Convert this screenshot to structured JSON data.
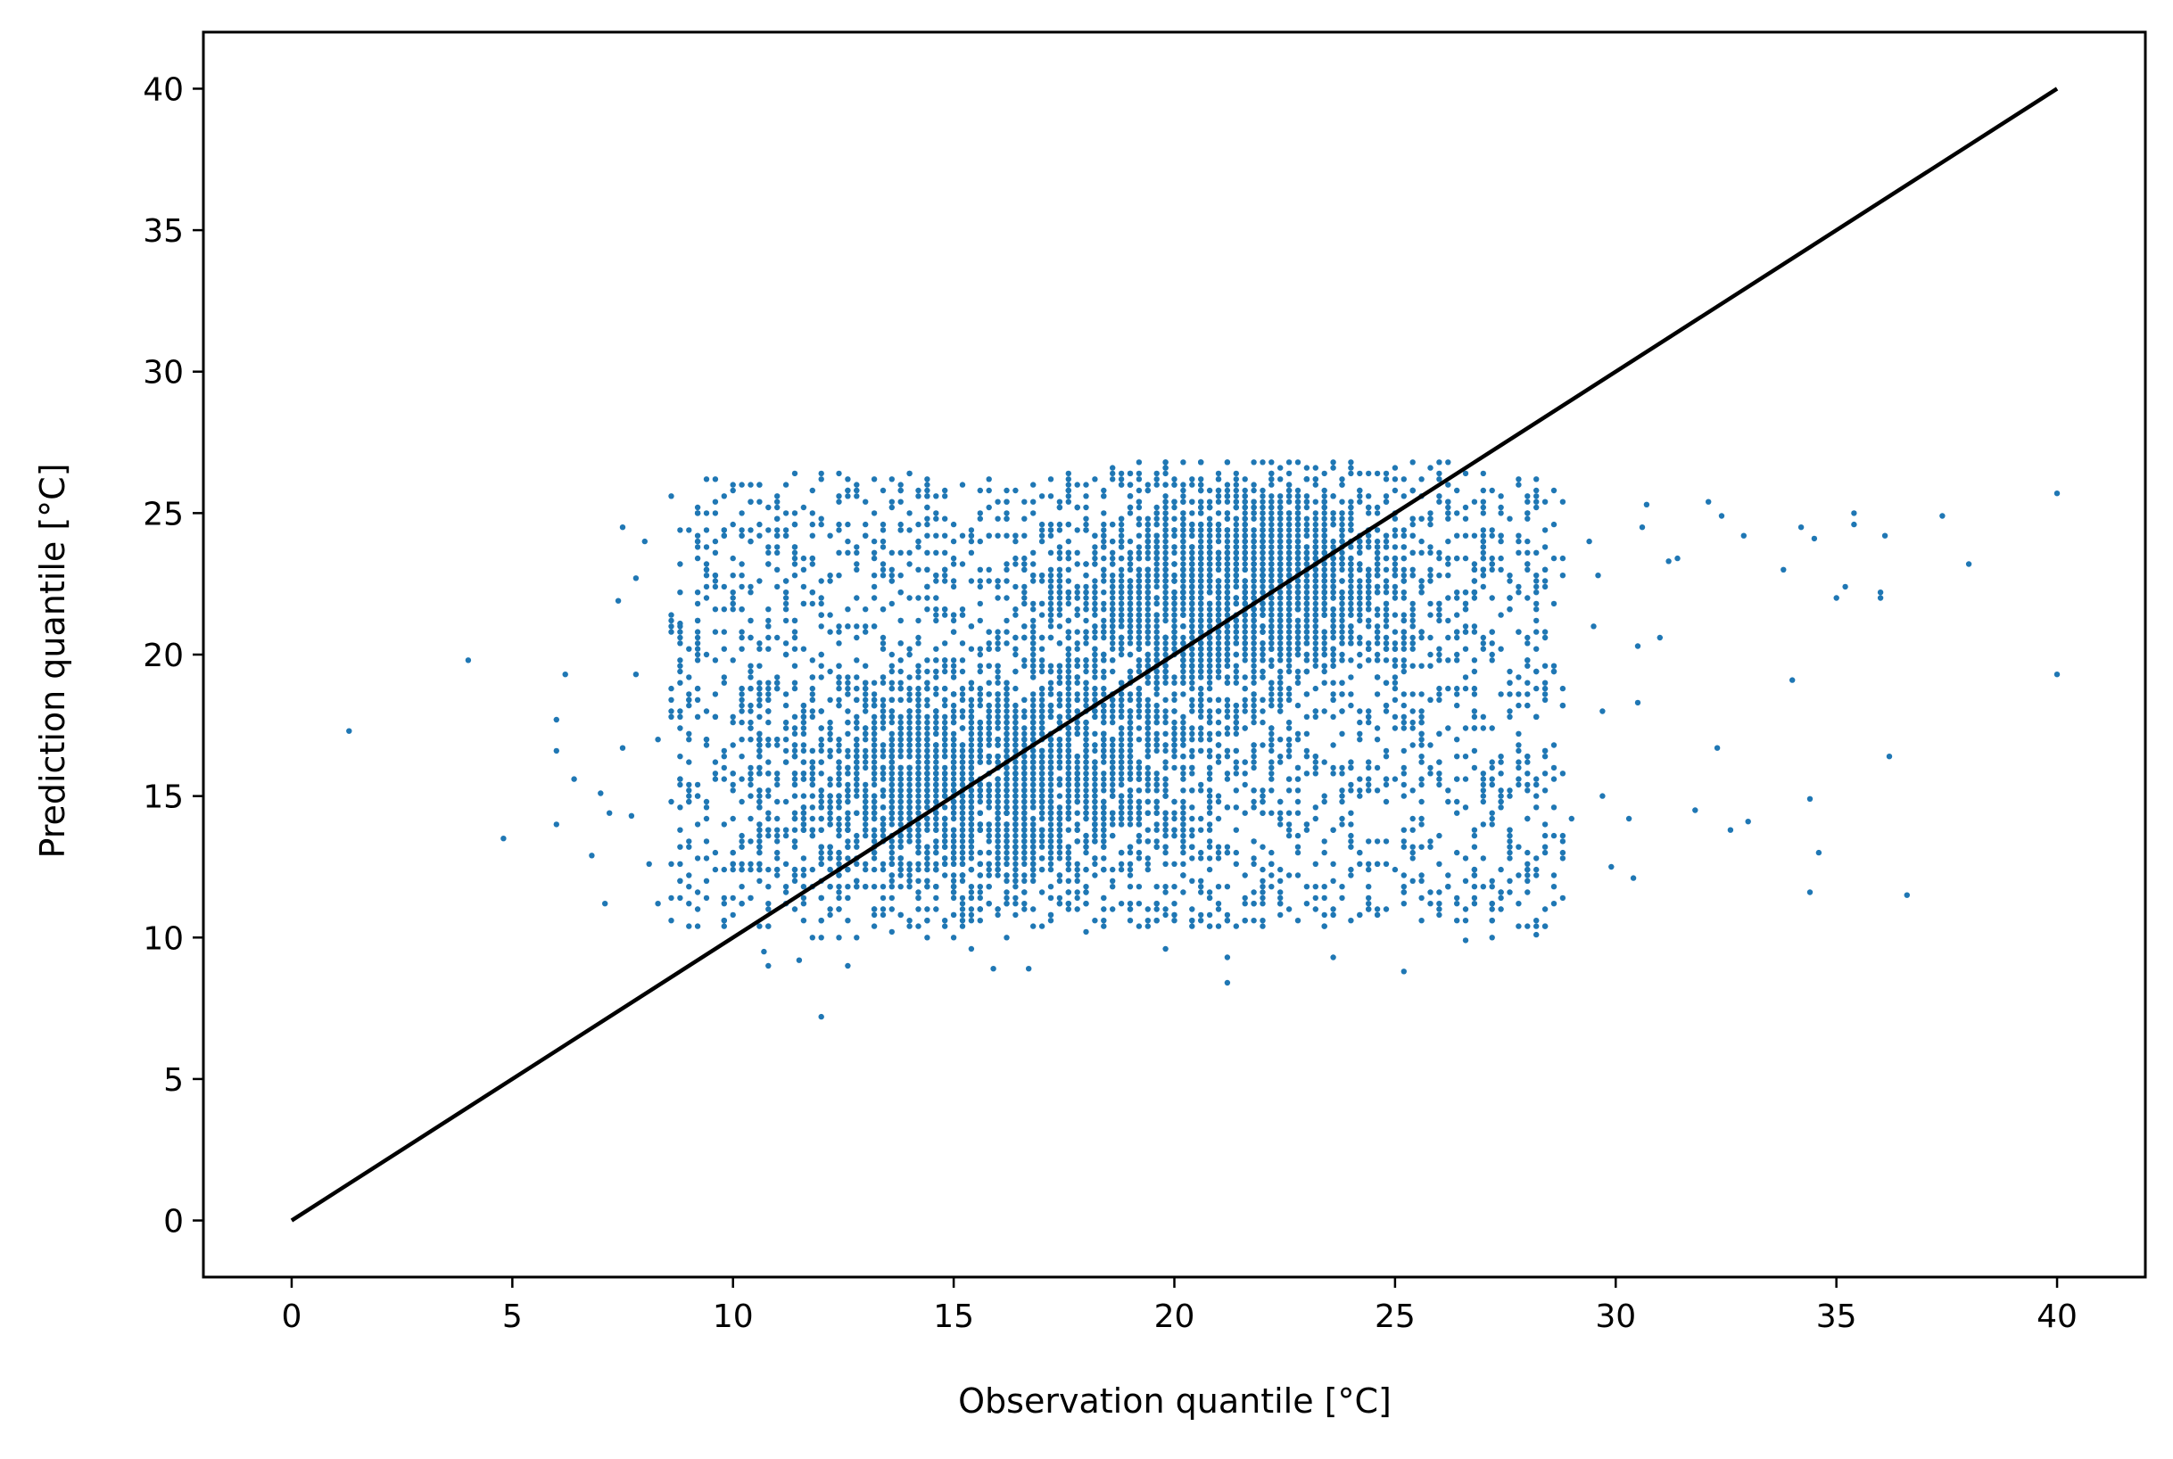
{
  "chart_data": {
    "type": "scatter",
    "title": "",
    "xlabel": "Observation quantile [°C]",
    "ylabel": "Prediction quantile [°C]",
    "xlim": [
      -2,
      42
    ],
    "ylim": [
      -2,
      42
    ],
    "xticks": [
      0,
      5,
      10,
      15,
      20,
      25,
      30,
      35,
      40
    ],
    "yticks": [
      0,
      5,
      10,
      15,
      20,
      25,
      30,
      35,
      40
    ],
    "grid": false,
    "legend": "none",
    "colors": {
      "points": "#1f77b4",
      "reference_line": "#000000"
    },
    "reference_line": {
      "x": [
        0,
        40
      ],
      "y": [
        0,
        40
      ]
    },
    "series": [
      {
        "values": [
          [
            1.3,
            17.3
          ],
          [
            4.0,
            19.8
          ],
          [
            4.8,
            13.5
          ],
          [
            6.0,
            17.7
          ],
          [
            6.0,
            16.6
          ],
          [
            6.0,
            14.0
          ],
          [
            6.2,
            19.3
          ],
          [
            6.4,
            15.6
          ],
          [
            6.8,
            12.9
          ],
          [
            7.0,
            15.1
          ],
          [
            7.2,
            14.4
          ],
          [
            7.1,
            11.2
          ],
          [
            7.4,
            21.9
          ],
          [
            7.5,
            16.7
          ],
          [
            7.5,
            24.5
          ],
          [
            7.8,
            19.3
          ],
          [
            7.8,
            22.7
          ],
          [
            7.7,
            14.3
          ],
          [
            8.0,
            24.0
          ],
          [
            8.1,
            12.6
          ],
          [
            8.3,
            17.0
          ],
          [
            8.3,
            11.2
          ],
          [
            8.6,
            25.6
          ],
          [
            8.8,
            21.1
          ],
          [
            12.0,
            7.2
          ],
          [
            10.8,
            9.0
          ],
          [
            10.7,
            9.5
          ],
          [
            11.5,
            9.2
          ],
          [
            12.6,
            9.0
          ],
          [
            15.9,
            8.9
          ],
          [
            16.7,
            8.9
          ],
          [
            21.2,
            8.4
          ],
          [
            21.2,
            9.3
          ],
          [
            23.6,
            9.3
          ],
          [
            25.2,
            8.8
          ],
          [
            26.6,
            9.9
          ],
          [
            27.2,
            10.0
          ],
          [
            28.2,
            10.1
          ],
          [
            29.0,
            14.2
          ],
          [
            29.4,
            24.0
          ],
          [
            29.5,
            21.0
          ],
          [
            29.6,
            22.8
          ],
          [
            29.7,
            18.0
          ],
          [
            29.7,
            15.0
          ],
          [
            29.9,
            12.5
          ],
          [
            30.3,
            14.2
          ],
          [
            30.4,
            12.1
          ],
          [
            30.5,
            18.3
          ],
          [
            30.5,
            20.3
          ],
          [
            30.6,
            24.5
          ],
          [
            30.7,
            25.3
          ],
          [
            31.0,
            20.6
          ],
          [
            31.2,
            23.3
          ],
          [
            31.4,
            23.4
          ],
          [
            31.8,
            14.5
          ],
          [
            32.1,
            25.4
          ],
          [
            32.3,
            16.7
          ],
          [
            32.4,
            24.9
          ],
          [
            32.6,
            13.8
          ],
          [
            32.9,
            24.2
          ],
          [
            33.0,
            14.1
          ],
          [
            33.8,
            23.0
          ],
          [
            34.0,
            19.1
          ],
          [
            34.2,
            24.5
          ],
          [
            34.4,
            14.9
          ],
          [
            34.4,
            11.6
          ],
          [
            34.5,
            24.1
          ],
          [
            34.6,
            13.0
          ],
          [
            35.0,
            22.0
          ],
          [
            35.2,
            22.4
          ],
          [
            35.4,
            25.0
          ],
          [
            35.4,
            24.6
          ],
          [
            36.0,
            22.2
          ],
          [
            36.0,
            22.0
          ],
          [
            36.1,
            24.2
          ],
          [
            36.2,
            16.4
          ],
          [
            36.6,
            11.5
          ],
          [
            37.4,
            24.9
          ],
          [
            38.0,
            23.2
          ],
          [
            40.0,
            25.7
          ],
          [
            40.0,
            19.3
          ]
        ]
      }
    ]
  }
}
